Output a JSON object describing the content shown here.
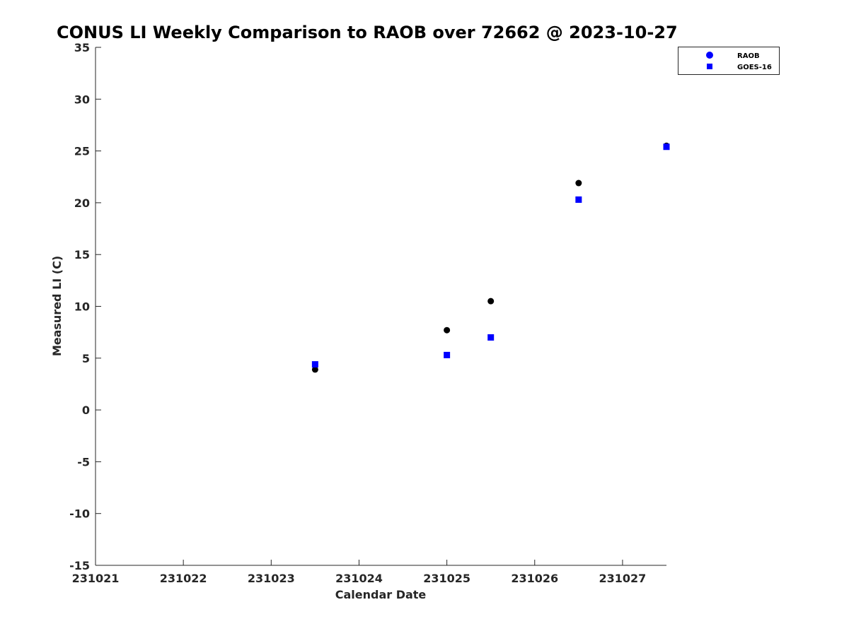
{
  "chart_data": {
    "type": "scatter",
    "title": "CONUS LI Weekly Comparison to RAOB over 72662 @ 2023-10-27",
    "xlabel": "Calendar Date",
    "ylabel": "Measured LI (C)",
    "x_ticks": [
      "231021",
      "231022",
      "231023",
      "231024",
      "231025",
      "231026",
      "231027"
    ],
    "y_ticks": [
      "35",
      "30",
      "25",
      "20",
      "15",
      "10",
      "5",
      "0",
      "-5",
      "-10",
      "-15"
    ],
    "xlim": [
      0,
      6.5
    ],
    "ylim": [
      -15,
      35
    ],
    "grid": false,
    "legend_position": "top-right",
    "series": [
      {
        "name": "RAOB",
        "marker": "circle",
        "color": "#000000",
        "legend_color": "#0000ff",
        "points": [
          {
            "x": 2.5,
            "y": 3.9
          },
          {
            "x": 4.0,
            "y": 7.7
          },
          {
            "x": 4.5,
            "y": 10.5
          },
          {
            "x": 5.5,
            "y": 21.9
          },
          {
            "x": 6.5,
            "y": 25.5
          }
        ]
      },
      {
        "name": "GOES-16",
        "marker": "square",
        "color": "#0000ff",
        "legend_color": "#0000ff",
        "points": [
          {
            "x": 2.5,
            "y": 4.4
          },
          {
            "x": 4.0,
            "y": 5.3
          },
          {
            "x": 4.5,
            "y": 7.0
          },
          {
            "x": 5.5,
            "y": 20.3
          },
          {
            "x": 6.5,
            "y": 25.4
          }
        ]
      }
    ]
  }
}
